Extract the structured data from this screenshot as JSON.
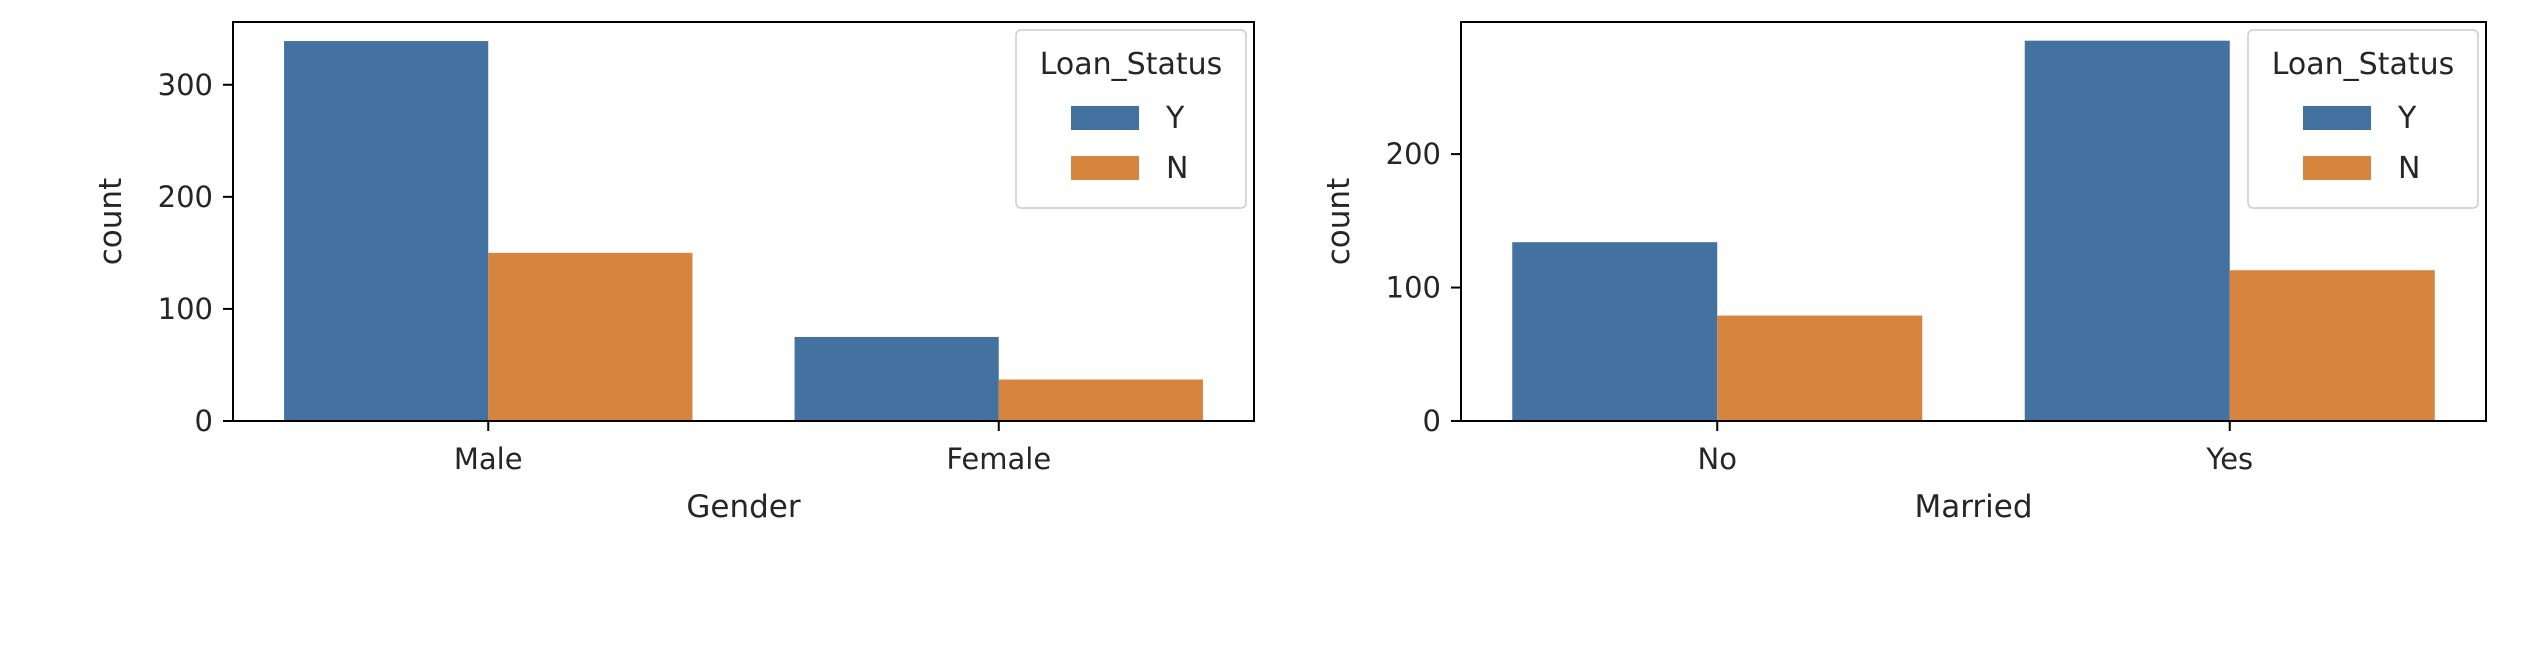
{
  "chart_data": [
    {
      "type": "bar",
      "xlabel": "Gender",
      "ylabel": "count",
      "categories": [
        "Male",
        "Female"
      ],
      "series": [
        {
          "name": "Y",
          "values": [
            339,
            75
          ],
          "color": "#4472a0"
        },
        {
          "name": "N",
          "values": [
            150,
            37
          ],
          "color": "#d6843e"
        }
      ],
      "ylim": [
        0,
        356
      ],
      "yticks": [
        0,
        100,
        200,
        300
      ],
      "legend": {
        "title": "Loan_Status",
        "placement": "top-right"
      },
      "grid": false
    },
    {
      "type": "bar",
      "xlabel": "Married",
      "ylabel": "count",
      "categories": [
        "No",
        "Yes"
      ],
      "series": [
        {
          "name": "Y",
          "values": [
            134,
            285
          ],
          "color": "#4472a0"
        },
        {
          "name": "N",
          "values": [
            79,
            113
          ],
          "color": "#d6843e"
        }
      ],
      "ylim": [
        0,
        299
      ],
      "yticks": [
        0,
        100,
        200
      ],
      "legend": {
        "title": "Loan_Status",
        "placement": "top-right"
      },
      "grid": false
    }
  ]
}
